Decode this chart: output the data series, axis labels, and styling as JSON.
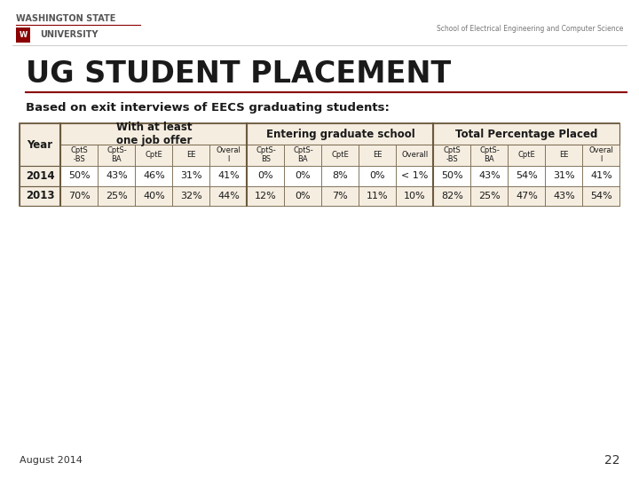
{
  "title": "UG STUDENT PLACEMENT",
  "subtitle": "Based on exit interviews of EECS graduating students:",
  "bg_color": "#ffffff",
  "header_color": "#f5ede0",
  "border_color": "#6b5a3e",
  "title_color": "#1a1a1a",
  "subtitle_color": "#1a1a1a",
  "wsu_line1": "WASHINGTON STATE",
  "wsu_line2": "UNIVERSITY",
  "wsu_dept": "School of Electrical Engineering and Computer Science",
  "footer_text": "August 2014",
  "page_num": "22",
  "col_groups": [
    {
      "label": "With at least\none job offer"
    },
    {
      "label": "Entering graduate school"
    },
    {
      "label": "Total Percentage Placed"
    }
  ],
  "sub_headers_job": [
    "CptS\n-BS",
    "CptS-\nBA",
    "CptE",
    "EE",
    "Overal\nl"
  ],
  "sub_headers_grad": [
    "CptS-\nBS",
    "CptS-\nBA",
    "CptE",
    "EE",
    "Overall"
  ],
  "sub_headers_total": [
    "CptS\n-BS",
    "CptS-\nBA",
    "CptE",
    "EE",
    "Overal\nl"
  ],
  "rows": [
    {
      "year": "2014",
      "job": [
        "50%",
        "43%",
        "46%",
        "31%",
        "41%"
      ],
      "grad": [
        "0%",
        "0%",
        "8%",
        "0%",
        "< 1%"
      ],
      "total": [
        "50%",
        "43%",
        "54%",
        "31%",
        "41%"
      ]
    },
    {
      "year": "2013",
      "job": [
        "70%",
        "25%",
        "40%",
        "32%",
        "44%"
      ],
      "grad": [
        "12%",
        "0%",
        "7%",
        "11%",
        "10%"
      ],
      "total": [
        "82%",
        "25%",
        "47%",
        "43%",
        "54%"
      ]
    }
  ],
  "data_row_bg_even": "#ffffff",
  "data_row_bg_odd": "#f5ede0",
  "title_line_color": "#8B0000",
  "wsu_sep_color": "#8B0000",
  "shield_color": "#8B0000"
}
